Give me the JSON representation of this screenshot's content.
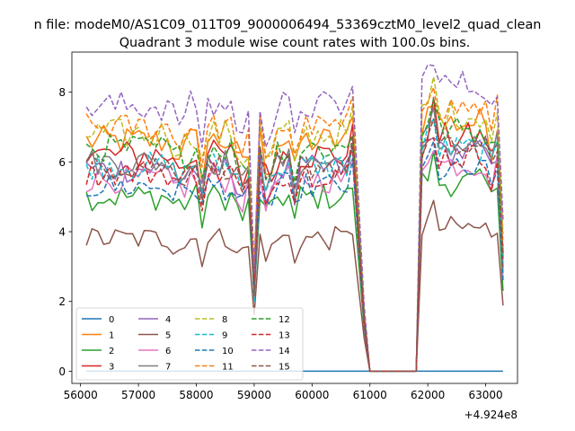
{
  "chart_data": {
    "type": "line",
    "suptitle": "n file: modeM0/AS1C09_011T09_9000006494_53369cztM0_level2_quad_clean",
    "title": "Quadrant 3 module wise count rates with 100.0s bins.",
    "xlabel": "",
    "ylabel": "",
    "offset_label": "+4.924e8",
    "xlim": [
      55850,
      63550
    ],
    "ylim": [
      -0.35,
      9.15
    ],
    "x_ticks": [
      56000,
      57000,
      58000,
      59000,
      60000,
      61000,
      62000,
      63000
    ],
    "x_tick_labels": [
      "56000",
      "57000",
      "58000",
      "59000",
      "60000",
      "61000",
      "62000",
      "63000"
    ],
    "y_ticks": [
      0,
      2,
      4,
      6,
      8
    ],
    "y_tick_labels": [
      "0",
      "2",
      "4",
      "6",
      "8"
    ],
    "legend_position": "lower-left",
    "segments": [
      [
        56100,
        60700
      ],
      [
        61900,
        63300
      ]
    ],
    "gap": {
      "drop_to": 61000,
      "zero_from": 61000,
      "zero_to": 61800
    },
    "series": [
      {
        "name": "0",
        "color": "#1f77b4",
        "dash": "solid",
        "base": 0.0,
        "noise": 0.0
      },
      {
        "name": "1",
        "color": "#ff7f0e",
        "dash": "solid",
        "base": 6.6,
        "noise": 0.45
      },
      {
        "name": "2",
        "color": "#2ca02c",
        "dash": "solid",
        "base": 5.0,
        "noise": 0.4
      },
      {
        "name": "3",
        "color": "#d62728",
        "dash": "solid",
        "base": 6.2,
        "noise": 0.45
      },
      {
        "name": "4",
        "color": "#9467bd",
        "dash": "solid",
        "base": 5.8,
        "noise": 0.4
      },
      {
        "name": "5",
        "color": "#8c564b",
        "dash": "solid",
        "base": 3.8,
        "noise": 0.35
      },
      {
        "name": "6",
        "color": "#e377c2",
        "dash": "solid",
        "base": 5.5,
        "noise": 0.4
      },
      {
        "name": "7",
        "color": "#7f7f7f",
        "dash": "solid",
        "base": 6.0,
        "noise": 0.4
      },
      {
        "name": "8",
        "color": "#bcbd22",
        "dash": "dashed",
        "base": 6.8,
        "noise": 0.45
      },
      {
        "name": "9",
        "color": "#17becf",
        "dash": "dashed",
        "base": 5.9,
        "noise": 0.4
      },
      {
        "name": "10",
        "color": "#1f77b4",
        "dash": "dashed",
        "base": 5.3,
        "noise": 0.4
      },
      {
        "name": "11",
        "color": "#ff7f0e",
        "dash": "dashed",
        "base": 7.0,
        "noise": 0.4
      },
      {
        "name": "12",
        "color": "#2ca02c",
        "dash": "dashed",
        "base": 6.4,
        "noise": 0.4
      },
      {
        "name": "13",
        "color": "#d62728",
        "dash": "dashed",
        "base": 5.7,
        "noise": 0.4
      },
      {
        "name": "14",
        "color": "#9467bd",
        "dash": "dashed",
        "base": 7.6,
        "noise": 0.45
      },
      {
        "name": "15",
        "color": "#8c564b",
        "dash": "dashed",
        "base": 5.9,
        "noise": 0.4
      }
    ]
  }
}
